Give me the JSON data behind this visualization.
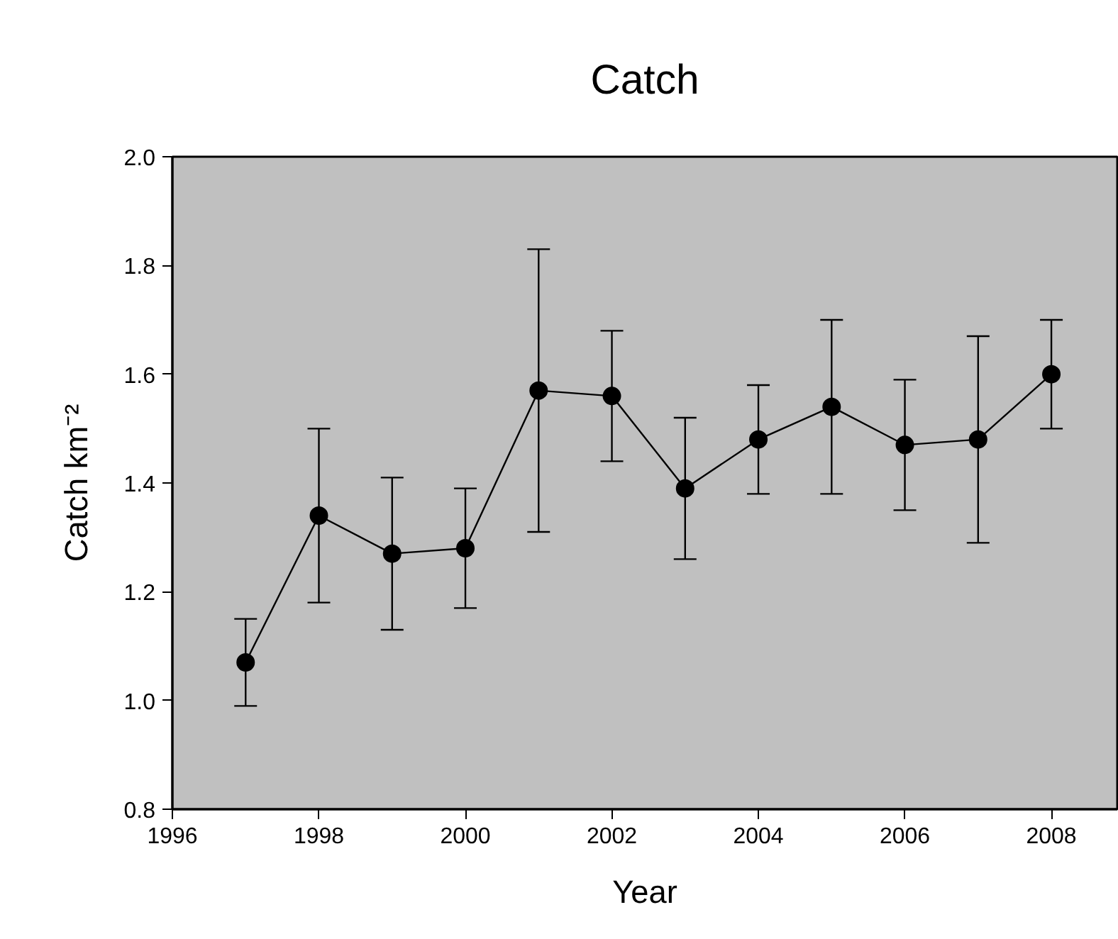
{
  "chart_data": {
    "type": "line",
    "title": "Catch",
    "xlabel": "Year",
    "ylabel": "Catch km⁻²",
    "x": [
      1997,
      1998,
      1999,
      2000,
      2001,
      2002,
      2003,
      2004,
      2005,
      2006,
      2007,
      2008
    ],
    "series": [
      {
        "color": "#000000",
        "values": [
          1.07,
          1.34,
          1.27,
          1.28,
          1.57,
          1.56,
          1.39,
          1.48,
          1.54,
          1.47,
          1.48,
          1.6
        ],
        "errors": [
          [
            0.99,
            1.15
          ],
          [
            1.18,
            1.5
          ],
          [
            1.13,
            1.41
          ],
          [
            1.17,
            1.39
          ],
          [
            1.31,
            1.83
          ],
          [
            1.44,
            1.68
          ],
          [
            1.26,
            1.52
          ],
          [
            1.38,
            1.58
          ],
          [
            1.38,
            1.7
          ],
          [
            1.35,
            1.59
          ],
          [
            1.29,
            1.67
          ],
          [
            1.5,
            1.7
          ]
        ]
      }
    ],
    "xlim": [
      1996,
      2008.9
    ],
    "ylim": [
      0.8,
      2.0
    ],
    "xticks": [
      1996,
      1998,
      2000,
      2002,
      2004,
      2006,
      2008
    ],
    "yticks": [
      {
        "value": 0.8,
        "label": "0.8"
      },
      {
        "value": 1.0,
        "label": "1.0"
      },
      {
        "value": 1.2,
        "label": "1.2"
      },
      {
        "value": 1.4,
        "label": "1.4"
      },
      {
        "value": 1.6,
        "label": "1.6"
      },
      {
        "value": 1.8,
        "label": "1.8"
      },
      {
        "value": 2.0,
        "label": "2.0"
      }
    ],
    "grid": false,
    "marker": "circle",
    "line_style": "solid"
  }
}
